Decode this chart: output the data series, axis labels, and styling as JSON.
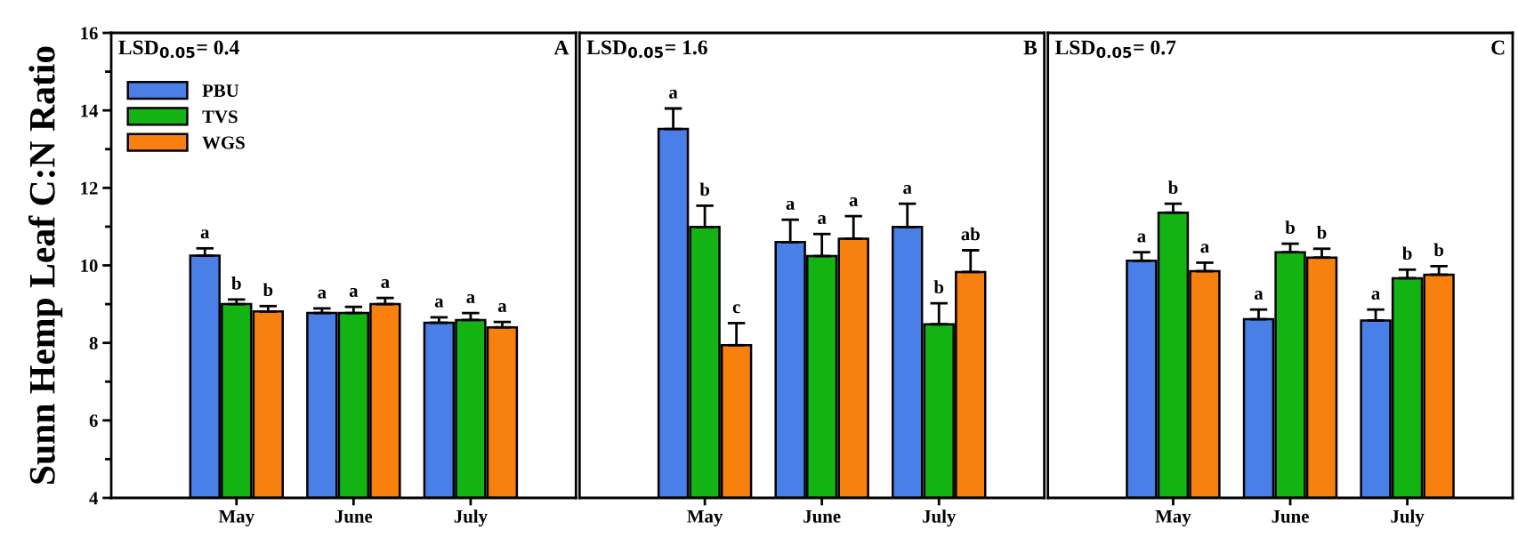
{
  "chart_data": [
    {
      "type": "bar",
      "ylabel": "Sunn Hemp Leaf C:N Ratio",
      "categories": [
        "May",
        "June",
        "July"
      ],
      "ylim": [
        4,
        16
      ],
      "yticks": [
        4,
        {
          "value": 5,
          "label": null
        },
        6,
        {
          "value": 7,
          "label": null
        },
        8,
        {
          "value": 9,
          "label": null
        },
        10,
        {
          "value": 11,
          "label": null
        },
        12,
        {
          "value": 13,
          "label": null
        },
        14,
        {
          "value": 15,
          "label": null
        },
        16
      ],
      "legend": "top left",
      "annotations": [
        "LSD$_{0.05}$= 0.4",
        "A"
      ],
      "series": [
        {
          "name": "PBU",
          "color": "#4a7fe8",
          "values": [
            10.25,
            8.77,
            8.52
          ],
          "errors": [
            [
              10.25,
              10.44
            ],
            [
              8.77,
              8.89
            ],
            [
              8.52,
              8.66
            ]
          ],
          "value_labels": [
            "a",
            "a",
            "a"
          ]
        },
        {
          "name": "TVS",
          "color": "#12b312",
          "values": [
            9.0,
            8.77,
            8.59
          ],
          "errors": [
            [
              9.0,
              9.12
            ],
            [
              8.77,
              8.93
            ],
            [
              8.59,
              8.77
            ]
          ],
          "value_labels": [
            "b",
            "a",
            "a"
          ]
        },
        {
          "name": "WGS",
          "color": "#f8800e",
          "values": [
            8.81,
            9.0,
            8.4
          ],
          "errors": [
            [
              8.81,
              8.95
            ],
            [
              9.0,
              9.16
            ],
            [
              8.4,
              8.54
            ]
          ],
          "value_labels": [
            "b",
            "a",
            "a"
          ]
        }
      ]
    },
    {
      "type": "bar",
      "categories": [
        "May",
        "June",
        "July"
      ],
      "ylim": [
        4,
        16
      ],
      "tick_labels": "x",
      "yticks": [
        4,
        6,
        8,
        10,
        12,
        14,
        16
      ],
      "annotations": [
        "LSD$_{0.05}$= 1.6",
        "B"
      ],
      "series": [
        {
          "color": "#4a7fe8",
          "values": [
            13.52,
            10.6,
            10.99
          ],
          "errors": [
            [
              13.52,
              14.05
            ],
            [
              10.6,
              11.18
            ],
            [
              10.99,
              11.59
            ]
          ],
          "value_labels": [
            "a",
            "a",
            "a"
          ]
        },
        {
          "color": "#12b312",
          "values": [
            10.99,
            10.24,
            8.48
          ],
          "errors": [
            [
              10.99,
              11.54
            ],
            [
              10.24,
              10.81
            ],
            [
              8.48,
              9.02
            ]
          ],
          "value_labels": [
            "b",
            "a",
            "b"
          ]
        },
        {
          "color": "#f8800e",
          "values": [
            7.94,
            10.69,
            9.83
          ],
          "errors": [
            [
              7.94,
              8.51
            ],
            [
              10.69,
              11.27
            ],
            [
              9.83,
              10.39
            ]
          ],
          "value_labels": [
            "c",
            "a",
            "ab"
          ]
        }
      ]
    },
    {
      "type": "bar",
      "categories": [
        "May",
        "June",
        "July"
      ],
      "ylim": [
        4,
        16
      ],
      "tick_labels": "x",
      "yticks": [
        4,
        6,
        8,
        10,
        12,
        14,
        16
      ],
      "annotations": [
        "LSD$_{0.05}$= 0.7",
        "C"
      ],
      "series": [
        {
          "color": "#4a7fe8",
          "values": [
            10.12,
            8.61,
            8.58
          ],
          "errors": [
            [
              10.12,
              10.34
            ],
            [
              8.61,
              8.86
            ],
            [
              8.58,
              8.86
            ]
          ],
          "value_labels": [
            "a",
            "a",
            "a"
          ]
        },
        {
          "color": "#12b312",
          "values": [
            11.36,
            10.34,
            9.67
          ],
          "errors": [
            [
              11.36,
              11.59
            ],
            [
              10.34,
              10.56
            ],
            [
              9.67,
              9.89
            ]
          ],
          "value_labels": [
            "b",
            "b",
            "b"
          ]
        },
        {
          "color": "#f8800e",
          "values": [
            9.85,
            10.2,
            9.76
          ],
          "errors": [
            [
              9.85,
              10.07
            ],
            [
              10.2,
              10.43
            ],
            [
              9.76,
              9.98
            ]
          ],
          "value_labels": [
            "a",
            "b",
            "b"
          ]
        }
      ]
    }
  ]
}
